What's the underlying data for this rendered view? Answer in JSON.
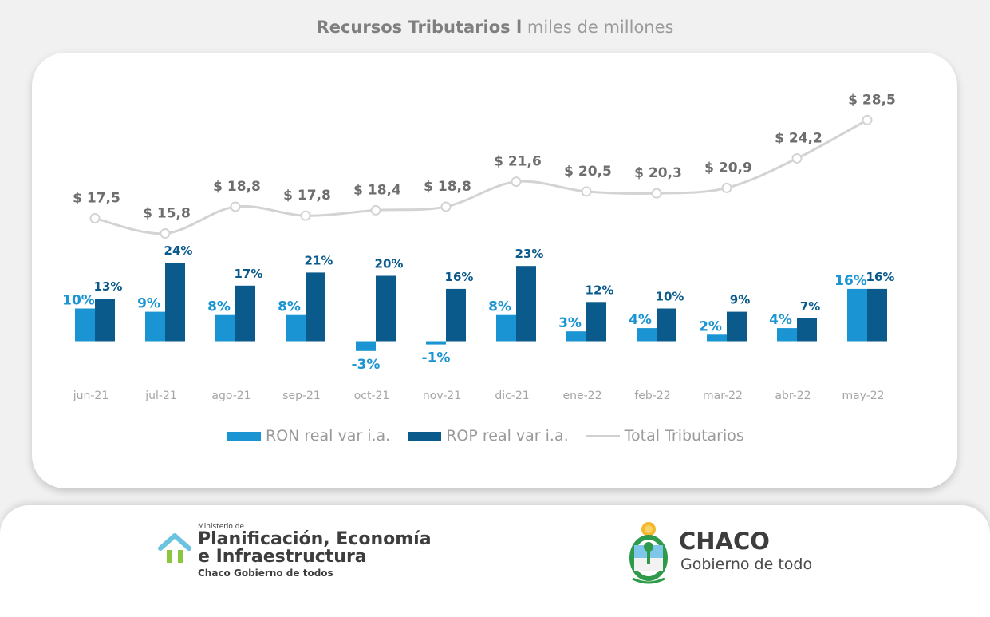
{
  "title": {
    "bold": "Recursos Tributarios l",
    "rest": "miles de millones"
  },
  "chart_data": {
    "type": "bar",
    "categories": [
      "jun-21",
      "jul-21",
      "ago-21",
      "sep-21",
      "oct-21",
      "nov-21",
      "dic-21",
      "ene-22",
      "feb-22",
      "mar-22",
      "abr-22",
      "may-22"
    ],
    "series": [
      {
        "name": "RON real var i.a.",
        "type": "bar",
        "color": "#1a94d2",
        "values": [
          10,
          9,
          8,
          8,
          -3,
          -1,
          8,
          3,
          4,
          2,
          4,
          16
        ],
        "labels": [
          "10%",
          "9%",
          "8%",
          "8%",
          "-3%",
          "-1%",
          "8%",
          "3%",
          "4%",
          "2%",
          "4%",
          "16%"
        ]
      },
      {
        "name": "ROP real var i.a.",
        "type": "bar",
        "color": "#0a5a8c",
        "values": [
          13,
          24,
          17,
          21,
          20,
          16,
          23,
          12,
          10,
          9,
          7,
          16
        ],
        "labels": [
          "13%",
          "24%",
          "17%",
          "21%",
          "20%",
          "16%",
          "23%",
          "12%",
          "10%",
          "9%",
          "7%",
          "16%"
        ]
      },
      {
        "name": "Total Tributarios",
        "type": "line",
        "color": "#d3d3d3",
        "values": [
          17.5,
          15.8,
          18.8,
          17.8,
          18.4,
          18.8,
          21.6,
          20.5,
          20.3,
          20.9,
          24.2,
          28.5
        ],
        "labels": [
          "$ 17,5",
          "$ 15,8",
          "$ 18,8",
          "$ 17,8",
          "$ 18,4",
          "$ 18,8",
          "$ 21,6",
          "$ 20,5",
          "$ 20,3",
          "$ 20,9",
          "$ 24,2",
          "$ 28,5"
        ]
      }
    ],
    "grid": false,
    "legend_position": "bottom"
  },
  "footer": {
    "ministry_small": "Ministerio de",
    "ministry_line1": "Planificación, Economía",
    "ministry_line2": "e Infraestructura",
    "ministry_sub": "Chaco Gobierno de todos",
    "chaco_name": "CHACO",
    "chaco_tag": "Gobierno de todo"
  }
}
